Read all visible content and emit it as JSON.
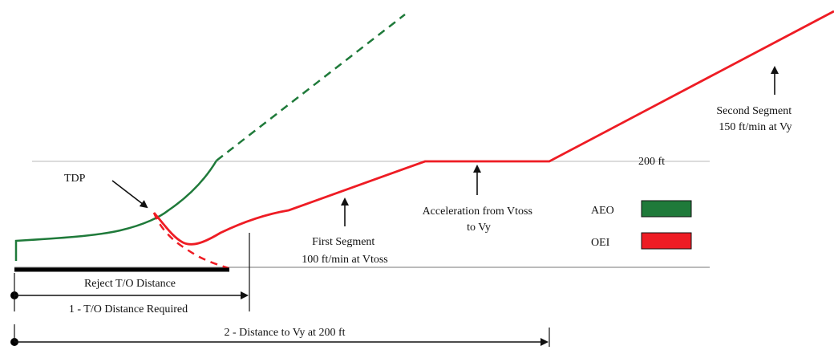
{
  "labels": {
    "tdp": "TDP",
    "two_hundred_ft": "200 ft",
    "second_segment_line1": "Second Segment",
    "second_segment_line2": "150 ft/min at Vy",
    "acceleration_line1": "Acceleration from Vtoss",
    "acceleration_line2": "to Vy",
    "first_segment_line1": "First Segment",
    "first_segment_line2": "100 ft/min at Vtoss",
    "reject_distance": "Reject T/O Distance",
    "td_required": "1 - T/O Distance Required",
    "distance_to_vy": "2 - Distance to Vy at 200 ft"
  },
  "legend": [
    {
      "label": "AEO",
      "color": "#1f7a3a"
    },
    {
      "label": "OEI",
      "color": "#ee1c24"
    }
  ],
  "colors": {
    "aeo": "#1f7a3a",
    "oei": "#ee1c24",
    "guide_line": "#c8c8c8",
    "ground_line": "#777777",
    "ink": "#111111"
  }
}
